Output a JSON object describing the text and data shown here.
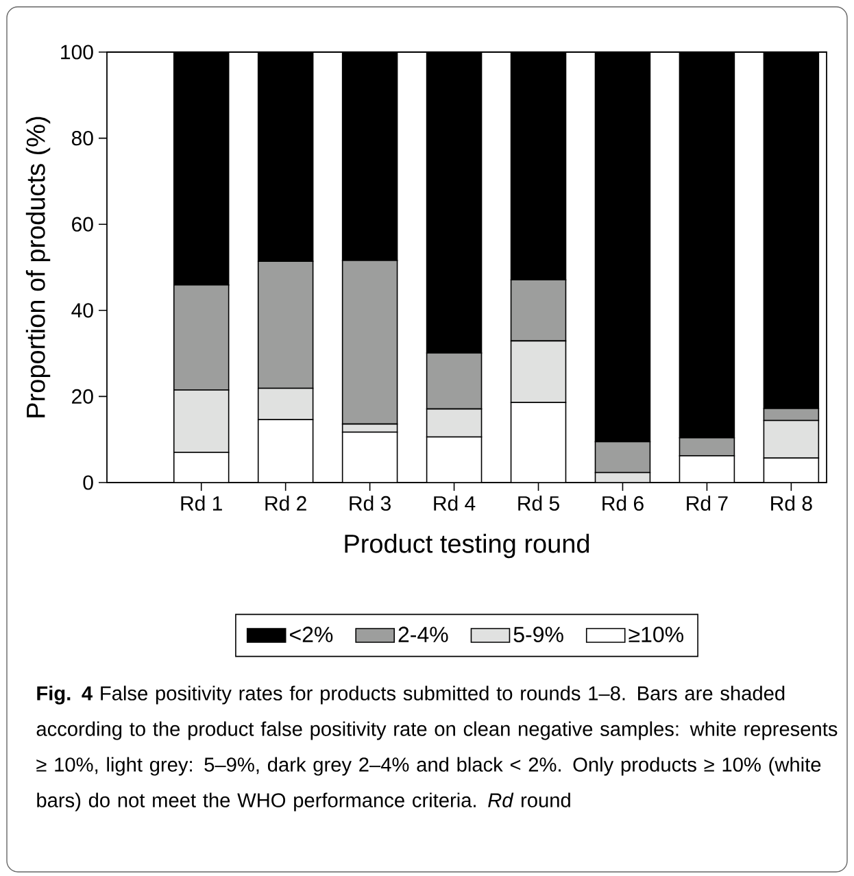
{
  "chart_data": {
    "type": "bar",
    "stacked": true,
    "xlabel": "Product testing round",
    "ylabel": "Proportion of products (%)",
    "categories": [
      "Rd 1",
      "Rd 2",
      "Rd 3",
      "Rd 4",
      "Rd 5",
      "Rd 6",
      "Rd 7",
      "Rd 8"
    ],
    "series": [
      {
        "name": "≥10%",
        "color": "#ffffff",
        "values": [
          7.0,
          14.6,
          11.7,
          10.6,
          18.6,
          0,
          6.2,
          5.7
        ]
      },
      {
        "name": "5-9%",
        "color": "#e0e1e0",
        "values": [
          14.5,
          7.3,
          1.9,
          6.5,
          14.3,
          2.3,
          0,
          8.7
        ]
      },
      {
        "name": "2-4%",
        "color": "#9d9e9d",
        "values": [
          24.4,
          29.5,
          38.0,
          13.0,
          14.2,
          7.2,
          4.2,
          2.8
        ]
      },
      {
        "name": "<2%",
        "color": "#000000",
        "values": [
          54.1,
          48.6,
          48.4,
          69.9,
          52.9,
          90.5,
          89.6,
          82.8
        ]
      }
    ],
    "ylim": [
      0,
      100
    ],
    "yticks": [
      0,
      20,
      40,
      60,
      80,
      100
    ],
    "grid": false,
    "legend": "bottom",
    "annotations": [
      "**Fig. 4**  False positivity rates for products submitted to rounds 1–8. Bars are shaded according to the product false positivity rate on clean negative samples: white represents ≥ 10%, light grey: 5–9%, dark grey 2–4% and black < 2%. Only products ≥ 10% (white bars) do not meet the WHO performance criteria. *Rd* round"
    ]
  }
}
